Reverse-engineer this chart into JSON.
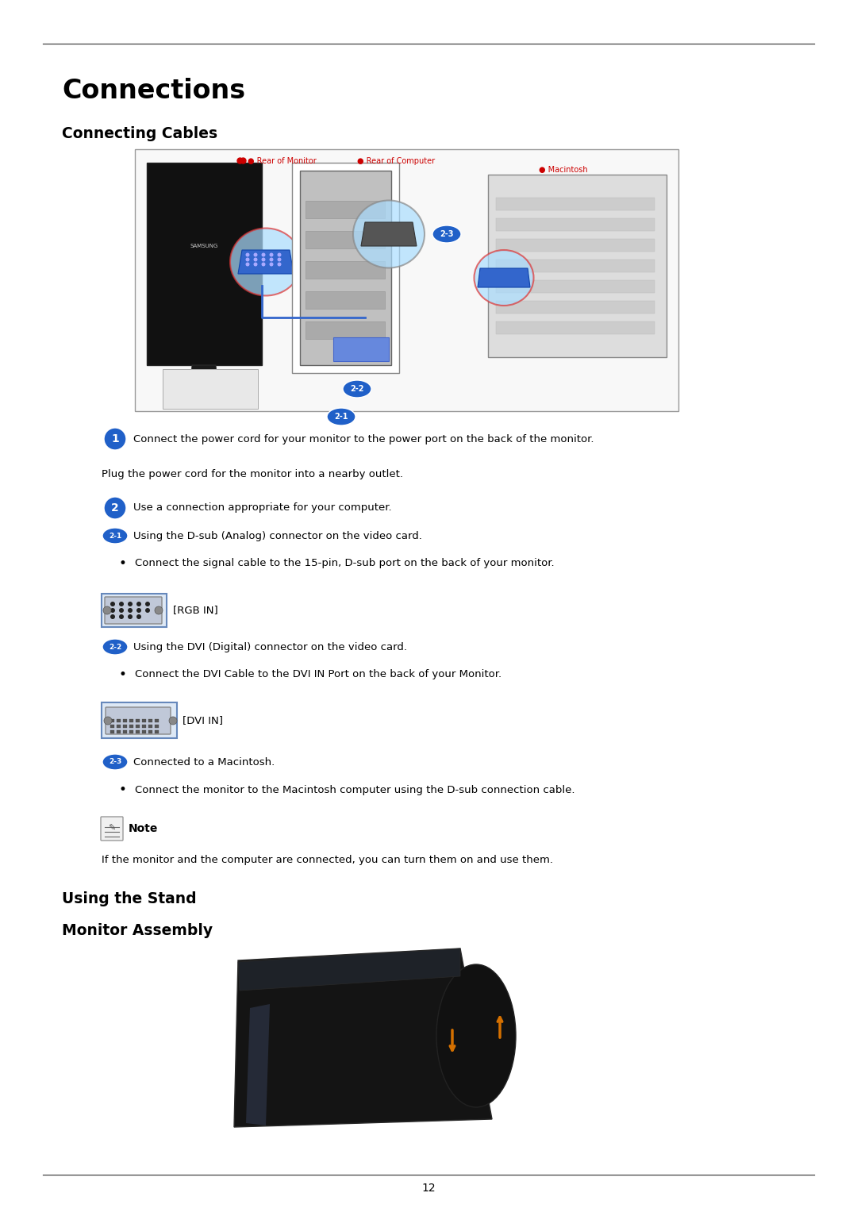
{
  "bg_color": "#ffffff",
  "text_color": "#000000",
  "line_color": "#555555",
  "blue_dark": "#1a4f9e",
  "badge_blue": "#2060c8",
  "title": "Connections",
  "subtitle1": "Connecting Cables",
  "subtitle2": "Using the Stand",
  "subtitle3": "Monitor Assembly",
  "page_number": "12",
  "step1_text": "Connect the power cord for your monitor to the power port on the back of the monitor.",
  "step1b_text": "Plug the power cord for the monitor into a nearby outlet.",
  "step2_text": "Use a connection appropriate for your computer.",
  "step2a_text": "Using the D-sub (Analog) connector on the video card.",
  "bullet1_text": "Connect the signal cable to the 15-pin, D-sub port on the back of your monitor.",
  "rgb_label": "[RGB IN]",
  "step2b_text": "Using the DVI (Digital) connector on the video card.",
  "bullet2_text": "Connect the DVI Cable to the DVI IN Port on the back of your Monitor.",
  "dvi_label": "[DVI IN]",
  "step2c_text": "Connected to a Macintosh.",
  "bullet3_text": "Connect the monitor to the Macintosh computer using the D-sub connection cable.",
  "note_label": "Note",
  "note_text": "If the monitor and the computer are connected, you can turn them on and use them."
}
